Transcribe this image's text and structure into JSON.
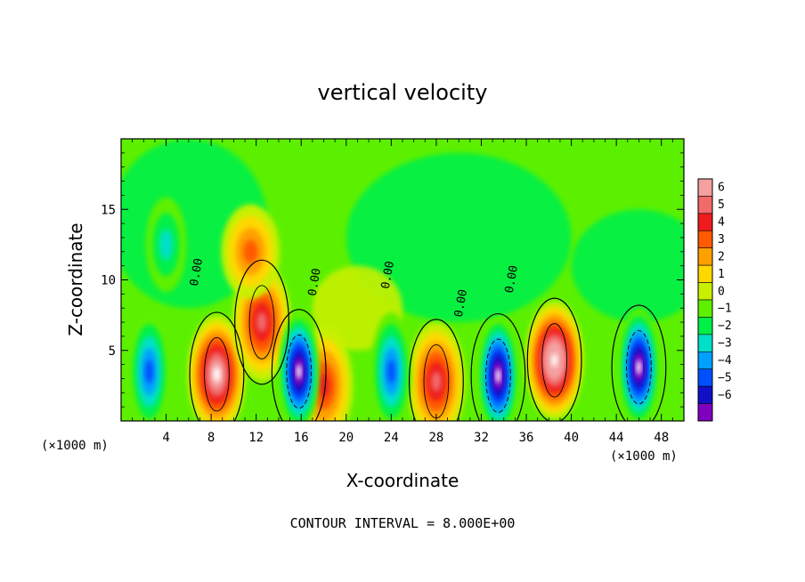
{
  "chart_data": {
    "type": "heatmap",
    "title": "vertical velocity",
    "xlabel": "X-coordinate",
    "ylabel": "Z-coordinate",
    "x_unit": "(×1000 m)",
    "xlim": [
      0,
      50
    ],
    "ylim": [
      0,
      20
    ],
    "x_ticks": [
      4,
      8,
      12,
      16,
      20,
      24,
      28,
      32,
      36,
      40,
      44,
      48
    ],
    "y_ticks": [
      5,
      10,
      15
    ],
    "colorbar": {
      "levels": [
        6,
        5,
        4,
        3,
        2,
        1,
        0,
        -1,
        -2,
        -3,
        -4,
        -5,
        -6
      ],
      "colors": [
        "#f4a0a0",
        "#f26a6a",
        "#ee1c1c",
        "#ff5a00",
        "#ffa000",
        "#ffd800",
        "#c8f000",
        "#5ff000",
        "#00f048",
        "#00e0c8",
        "#00a0ff",
        "#0050ff",
        "#1010c8",
        "#8000c0"
      ],
      "clip_high_color": "#ffffff"
    },
    "contour_labels": [
      "0.00",
      "0.00",
      "0.00",
      "0.00",
      "0.00"
    ],
    "contour_interval_text": "CONTOUR INTERVAL = 8.000E+00",
    "features": [
      {
        "kind": "updraft",
        "x": 8.5,
        "z": 3.3,
        "w": 6
      },
      {
        "kind": "updraft",
        "x": 12.5,
        "z": 7.0,
        "w": 5
      },
      {
        "kind": "updraft",
        "x": 18,
        "z": 2.5,
        "w": 4
      },
      {
        "kind": "updraft",
        "x": 28,
        "z": 2.8,
        "w": 5
      },
      {
        "kind": "updraft",
        "x": 38.5,
        "z": 4.3,
        "w": 7
      },
      {
        "kind": "updraft",
        "x": 11.5,
        "z": 12.0,
        "w": 3
      },
      {
        "kind": "downdraft",
        "x": 2.5,
        "z": 3.5,
        "w": -4
      },
      {
        "kind": "downdraft",
        "x": 15.8,
        "z": 3.5,
        "w": -6
      },
      {
        "kind": "downdraft",
        "x": 24,
        "z": 3.5,
        "w": -4
      },
      {
        "kind": "downdraft",
        "x": 33.5,
        "z": 3.2,
        "w": -6
      },
      {
        "kind": "downdraft",
        "x": 46,
        "z": 3.8,
        "w": -6
      },
      {
        "kind": "downdraft",
        "x": 4,
        "z": 12.5,
        "w": -2
      }
    ]
  }
}
